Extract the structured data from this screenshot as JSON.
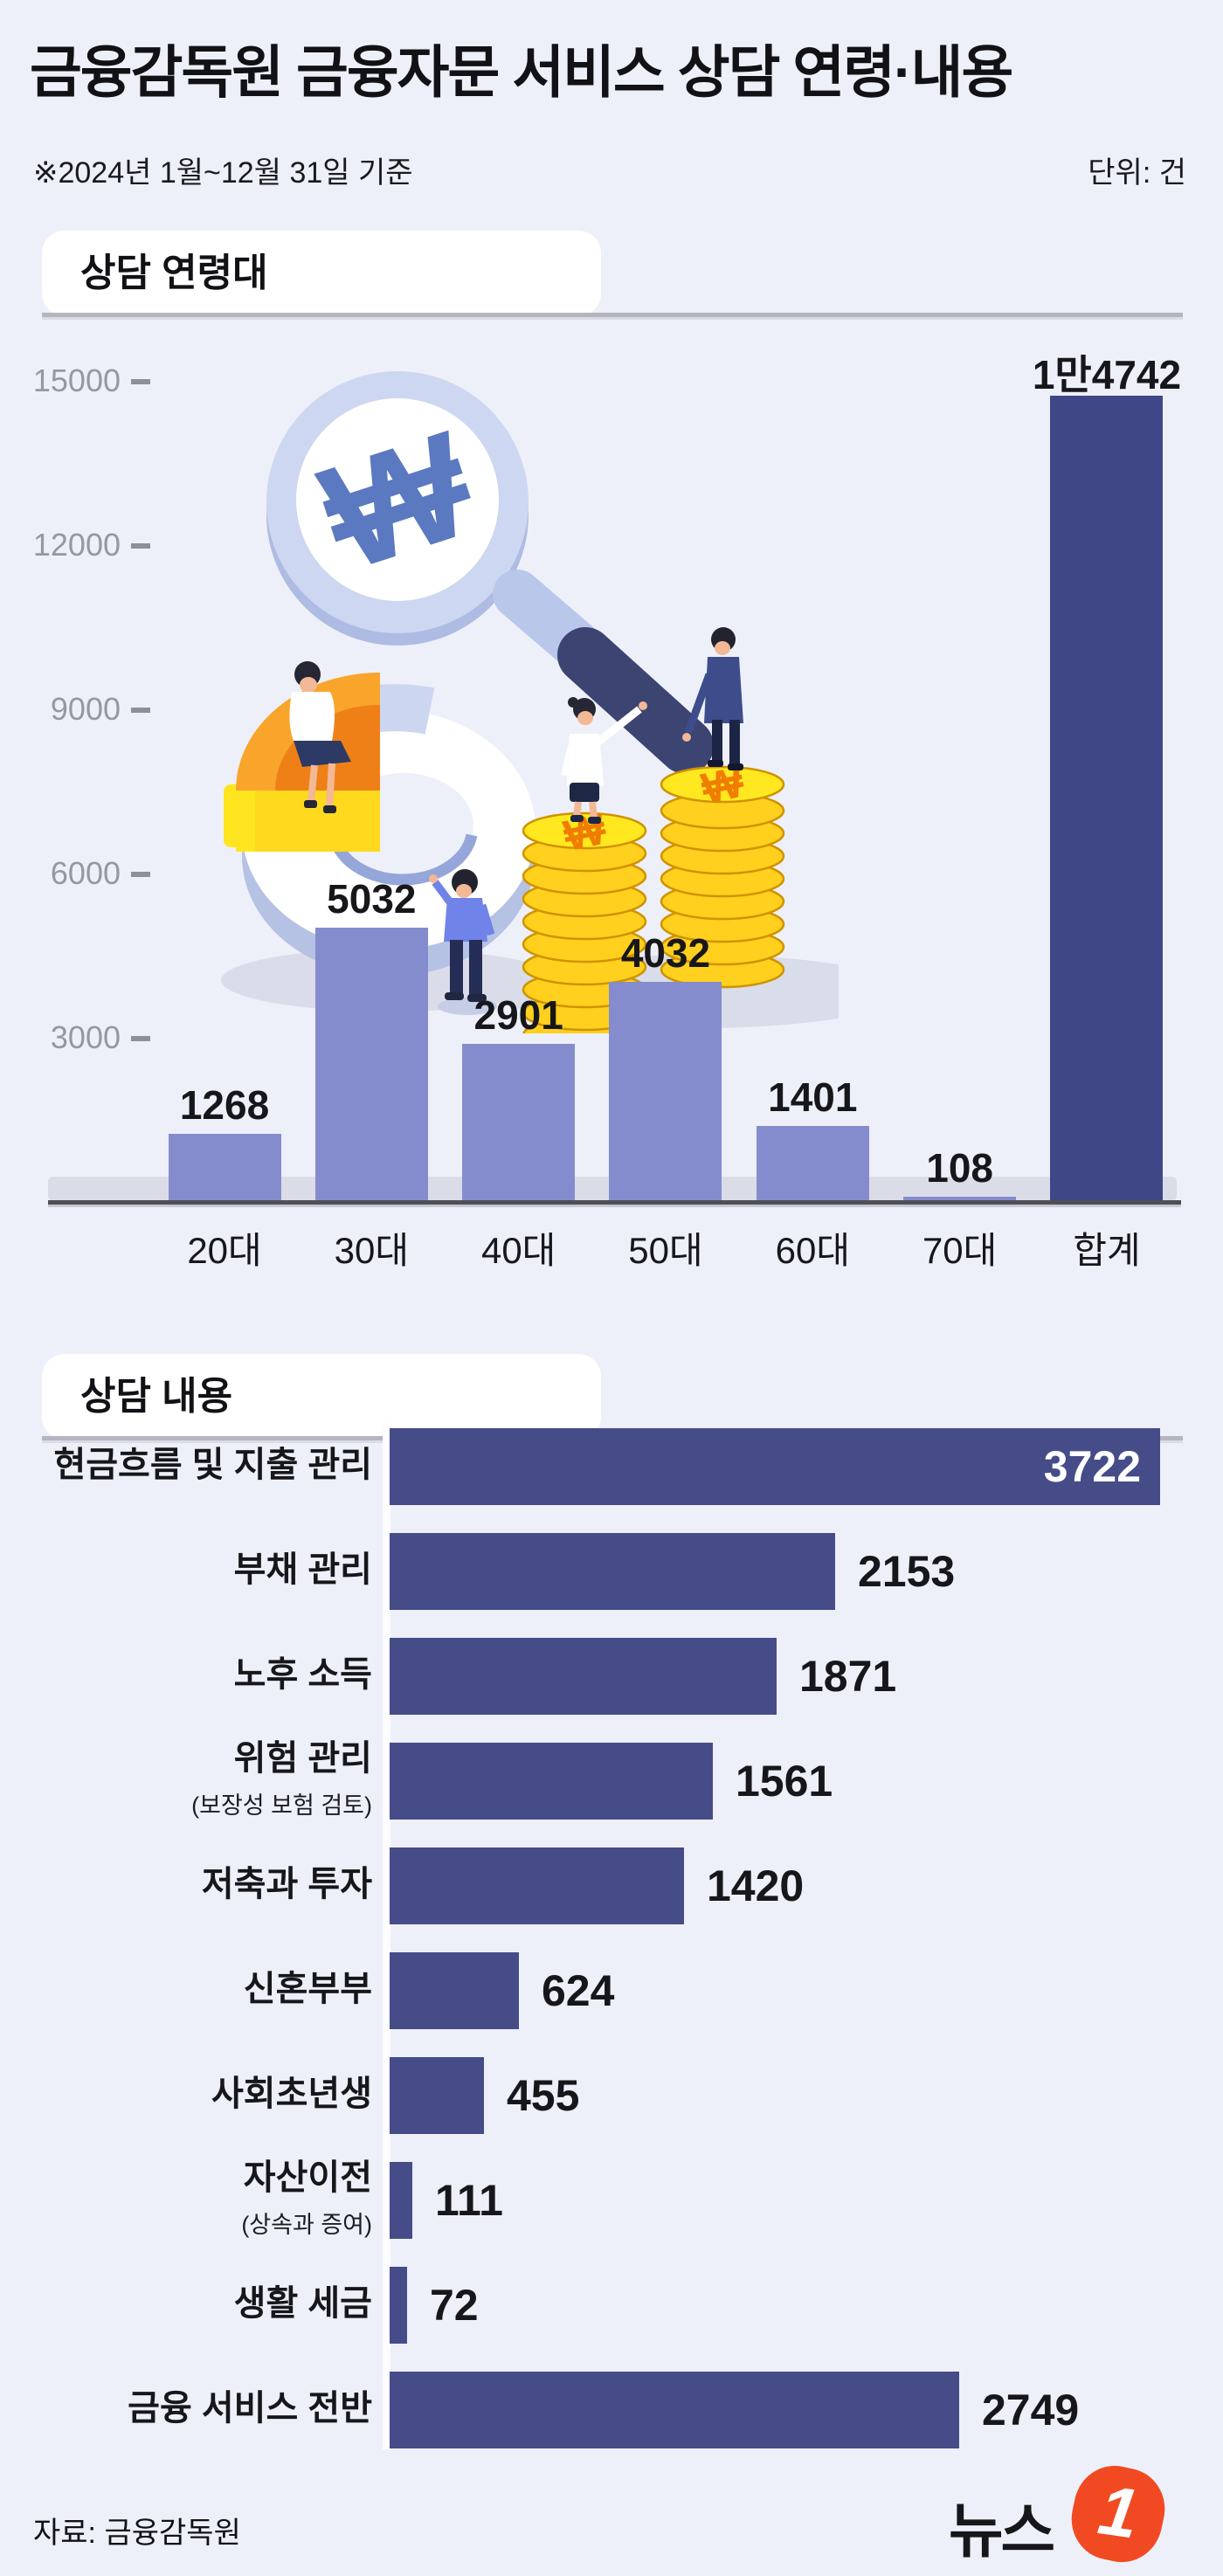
{
  "header": {
    "title": "금융감독원 금융자문 서비스 상담 연령·내용",
    "period_note": "※2024년 1월~12월 31일 기준",
    "unit_note": "단위: 건"
  },
  "sections": {
    "age": {
      "heading": "상담 연령대"
    },
    "topic": {
      "heading": "상담 내용"
    }
  },
  "chart_data": [
    {
      "type": "bar",
      "orientation": "vertical",
      "title": "상담 연령대",
      "unit": "건",
      "categories": [
        "20대",
        "30대",
        "40대",
        "50대",
        "60대",
        "70대",
        "합계"
      ],
      "values": [
        1268,
        5032,
        2901,
        4032,
        1401,
        108,
        14742
      ],
      "value_labels": [
        "1268",
        "5032",
        "2901",
        "4032",
        "1401",
        "108",
        "1만4742"
      ],
      "yticks": [
        3000,
        6000,
        9000,
        12000,
        15000
      ],
      "ylim": [
        0,
        15600
      ],
      "grid": false,
      "legend": "none",
      "bar_color": "#858cce",
      "total_bar_color": "#3f4787",
      "highlight_last": true
    },
    {
      "type": "bar",
      "orientation": "horizontal",
      "title": "상담 내용",
      "unit": "건",
      "categories": [
        "현금흐름 및 지출 관리",
        "부채 관리",
        "노후 소득",
        "위험 관리",
        "저축과 투자",
        "신혼부부",
        "사회초년생",
        "자산이전",
        "생활 세금",
        "금융 서비스 전반"
      ],
      "sublabels": [
        "",
        "",
        "",
        "(보장성 보험 검토)",
        "",
        "",
        "",
        "(상속과 증여)",
        "",
        ""
      ],
      "values": [
        3722,
        2153,
        1871,
        1561,
        1420,
        624,
        455,
        111,
        72,
        2749
      ],
      "value_labels": [
        "3722",
        "2153",
        "1871",
        "1561",
        "1420",
        "624",
        "455",
        "111",
        "72",
        "2749"
      ],
      "value_label_inside": [
        true,
        false,
        false,
        false,
        false,
        false,
        false,
        false,
        false,
        false
      ],
      "xlim": [
        0,
        3900
      ],
      "grid": false,
      "legend": "none",
      "bar_color": "#454c88"
    }
  ],
  "illustration": {
    "magnifier_symbol": "₩",
    "coin_symbol_left": "₩",
    "coin_symbol_right": "₩"
  },
  "footer": {
    "source": "자료: 금융감독원",
    "logo": {
      "text": "뉴스",
      "number": "1",
      "color": "#f14a22"
    }
  },
  "colors": {
    "background": "#eef0f9",
    "bar_light": "#858cce",
    "bar_dark": "#3f4787",
    "title_text": "#121216",
    "tick_text": "#9598a3",
    "section_rule": "#b4b5bf",
    "baseline": "#4f4f55",
    "coin_gold": "#ffd01d",
    "coin_symbol_orange": "#f07c00",
    "logo_orange": "#f14a22"
  }
}
